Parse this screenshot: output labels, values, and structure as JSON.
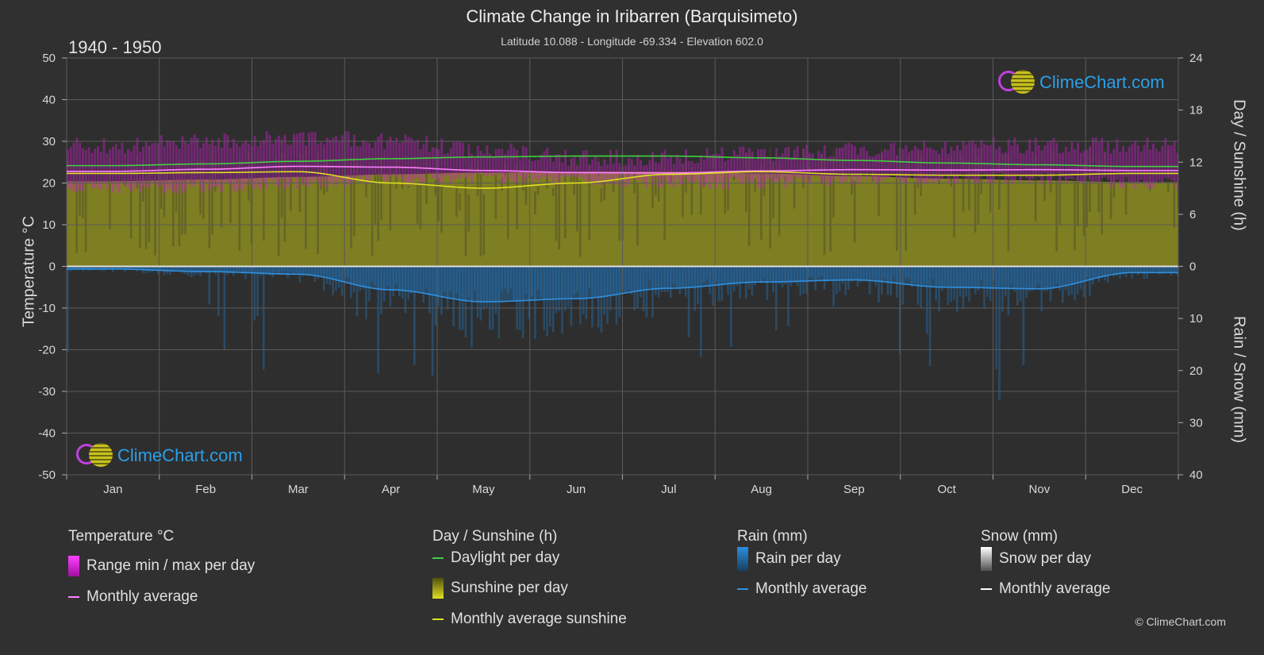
{
  "header": {
    "title": "Climate Change in Iribarren (Barquisimeto)",
    "subtitle": "Latitude 10.088 - Longitude -69.334 - Elevation 602.0",
    "years": "1940 - 1950"
  },
  "axes": {
    "left_title": "Temperature °C",
    "right_top_title": "Day / Sunshine (h)",
    "right_bottom_title": "Rain / Snow (mm)"
  },
  "logo": {
    "text": "ClimeChart.com"
  },
  "copyright": "© ClimeChart.com",
  "legend": {
    "temperature": {
      "heading": "Temperature °C",
      "range": "Range min / max per day",
      "avg": "Monthly average"
    },
    "day": {
      "heading": "Day / Sunshine (h)",
      "daylight": "Daylight per day",
      "sunshine": "Sunshine per day",
      "avg_sunshine": "Monthly average sunshine"
    },
    "rain": {
      "heading": "Rain (mm)",
      "per_day": "Rain per day",
      "avg": "Monthly average"
    },
    "snow": {
      "heading": "Snow (mm)",
      "per_day": "Snow per day",
      "avg": "Monthly average"
    }
  },
  "colors": {
    "background": "#303030",
    "temp_range": "#d020d0",
    "temp_avg": "#ff80ff",
    "daylight": "#40d040",
    "sunshine_fill": "#8c8c20",
    "sunshine_avg": "#e0e020",
    "rain": "#2080d0",
    "rain_avg": "#3090e0",
    "snow": "#ffffff"
  },
  "chart_data": {
    "type": "line",
    "categories": [
      "Jan",
      "Feb",
      "Mar",
      "Apr",
      "May",
      "Jun",
      "Jul",
      "Aug",
      "Sep",
      "Oct",
      "Nov",
      "Dec"
    ],
    "left_axis": {
      "ticks": [
        50,
        40,
        30,
        20,
        10,
        0,
        -10,
        -20,
        -30,
        -40,
        -50
      ],
      "range": [
        -50,
        50
      ]
    },
    "right_top_axis": {
      "ticks": [
        24,
        18,
        12,
        6,
        0
      ],
      "range": [
        0,
        24
      ]
    },
    "right_bottom_axis": {
      "ticks": [
        0,
        10,
        20,
        30,
        40
      ],
      "range": [
        0,
        40
      ]
    },
    "series": [
      {
        "name": "Daylight per day",
        "unit": "h",
        "values": [
          11.6,
          11.8,
          12.1,
          12.4,
          12.6,
          12.7,
          12.7,
          12.5,
          12.2,
          11.9,
          11.7,
          11.5
        ]
      },
      {
        "name": "Monthly average sunshine",
        "unit": "h",
        "values": [
          10.7,
          10.8,
          10.9,
          9.6,
          9.0,
          9.6,
          10.6,
          10.9,
          10.6,
          10.5,
          10.5,
          10.7
        ]
      },
      {
        "name": "Monthly average",
        "unit": "°C",
        "values": [
          22.8,
          23.3,
          24.0,
          23.8,
          23.0,
          22.5,
          22.4,
          22.9,
          23.2,
          23.1,
          23.2,
          23.0
        ]
      },
      {
        "name": "Temperature max",
        "unit": "°C",
        "values": [
          29,
          30,
          31,
          30,
          28,
          26,
          26,
          27,
          28,
          29,
          29,
          29
        ]
      },
      {
        "name": "Temperature min",
        "unit": "°C",
        "values": [
          19,
          19,
          20,
          21,
          21,
          21,
          20,
          20,
          21,
          21,
          21,
          20
        ]
      },
      {
        "name": "Rain monthly average",
        "unit": "mm",
        "values": [
          0.5,
          1.0,
          1.5,
          4.5,
          6.8,
          6.2,
          4.2,
          3.0,
          2.6,
          4.0,
          4.3,
          1.2
        ]
      }
    ]
  }
}
